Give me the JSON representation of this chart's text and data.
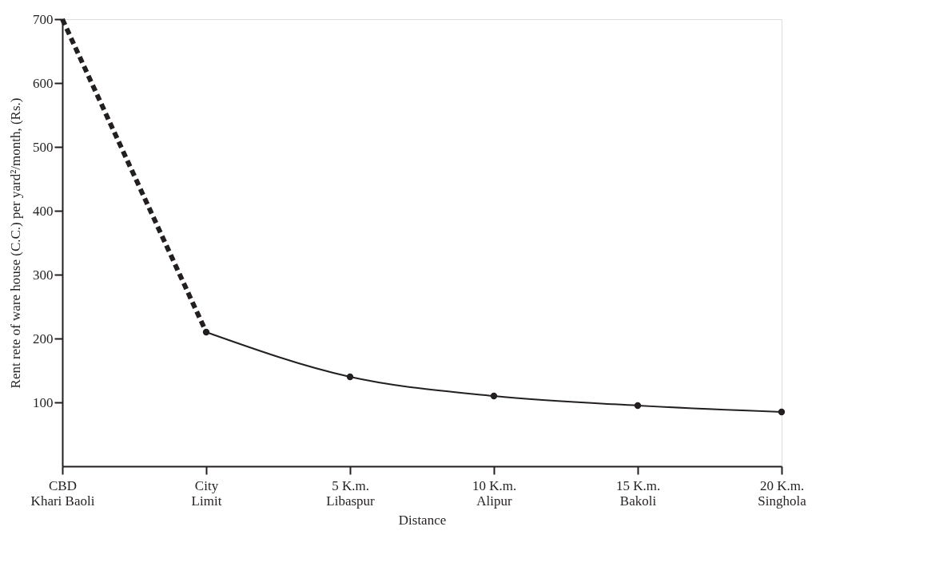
{
  "chart_data": {
    "type": "line",
    "xlabel": "Distance",
    "ylabel": "Rent rete of ware house (C.C.) per yard²/month, (Rs.)",
    "categories": [
      "CBD\nKhari Baoli",
      "City\nLimit",
      "5 K.m.\nLibaspur",
      "10 K.m.\nAlipur",
      "15 K.m.\nBakoli",
      "20 K.m.\nSinghola"
    ],
    "series": [
      {
        "color": "#231f20",
        "line_style": "dashed",
        "marker": "none",
        "values": [
          700,
          210,
          null,
          null,
          null,
          null
        ]
      },
      {
        "color": "#231f20",
        "line_style": "solid",
        "marker": "circle",
        "values": [
          null,
          210,
          140,
          110,
          95,
          85
        ]
      }
    ],
    "ylim": [
      0,
      700
    ],
    "yticks": [
      100,
      200,
      300,
      400,
      500,
      600,
      700
    ],
    "grid": false
  }
}
